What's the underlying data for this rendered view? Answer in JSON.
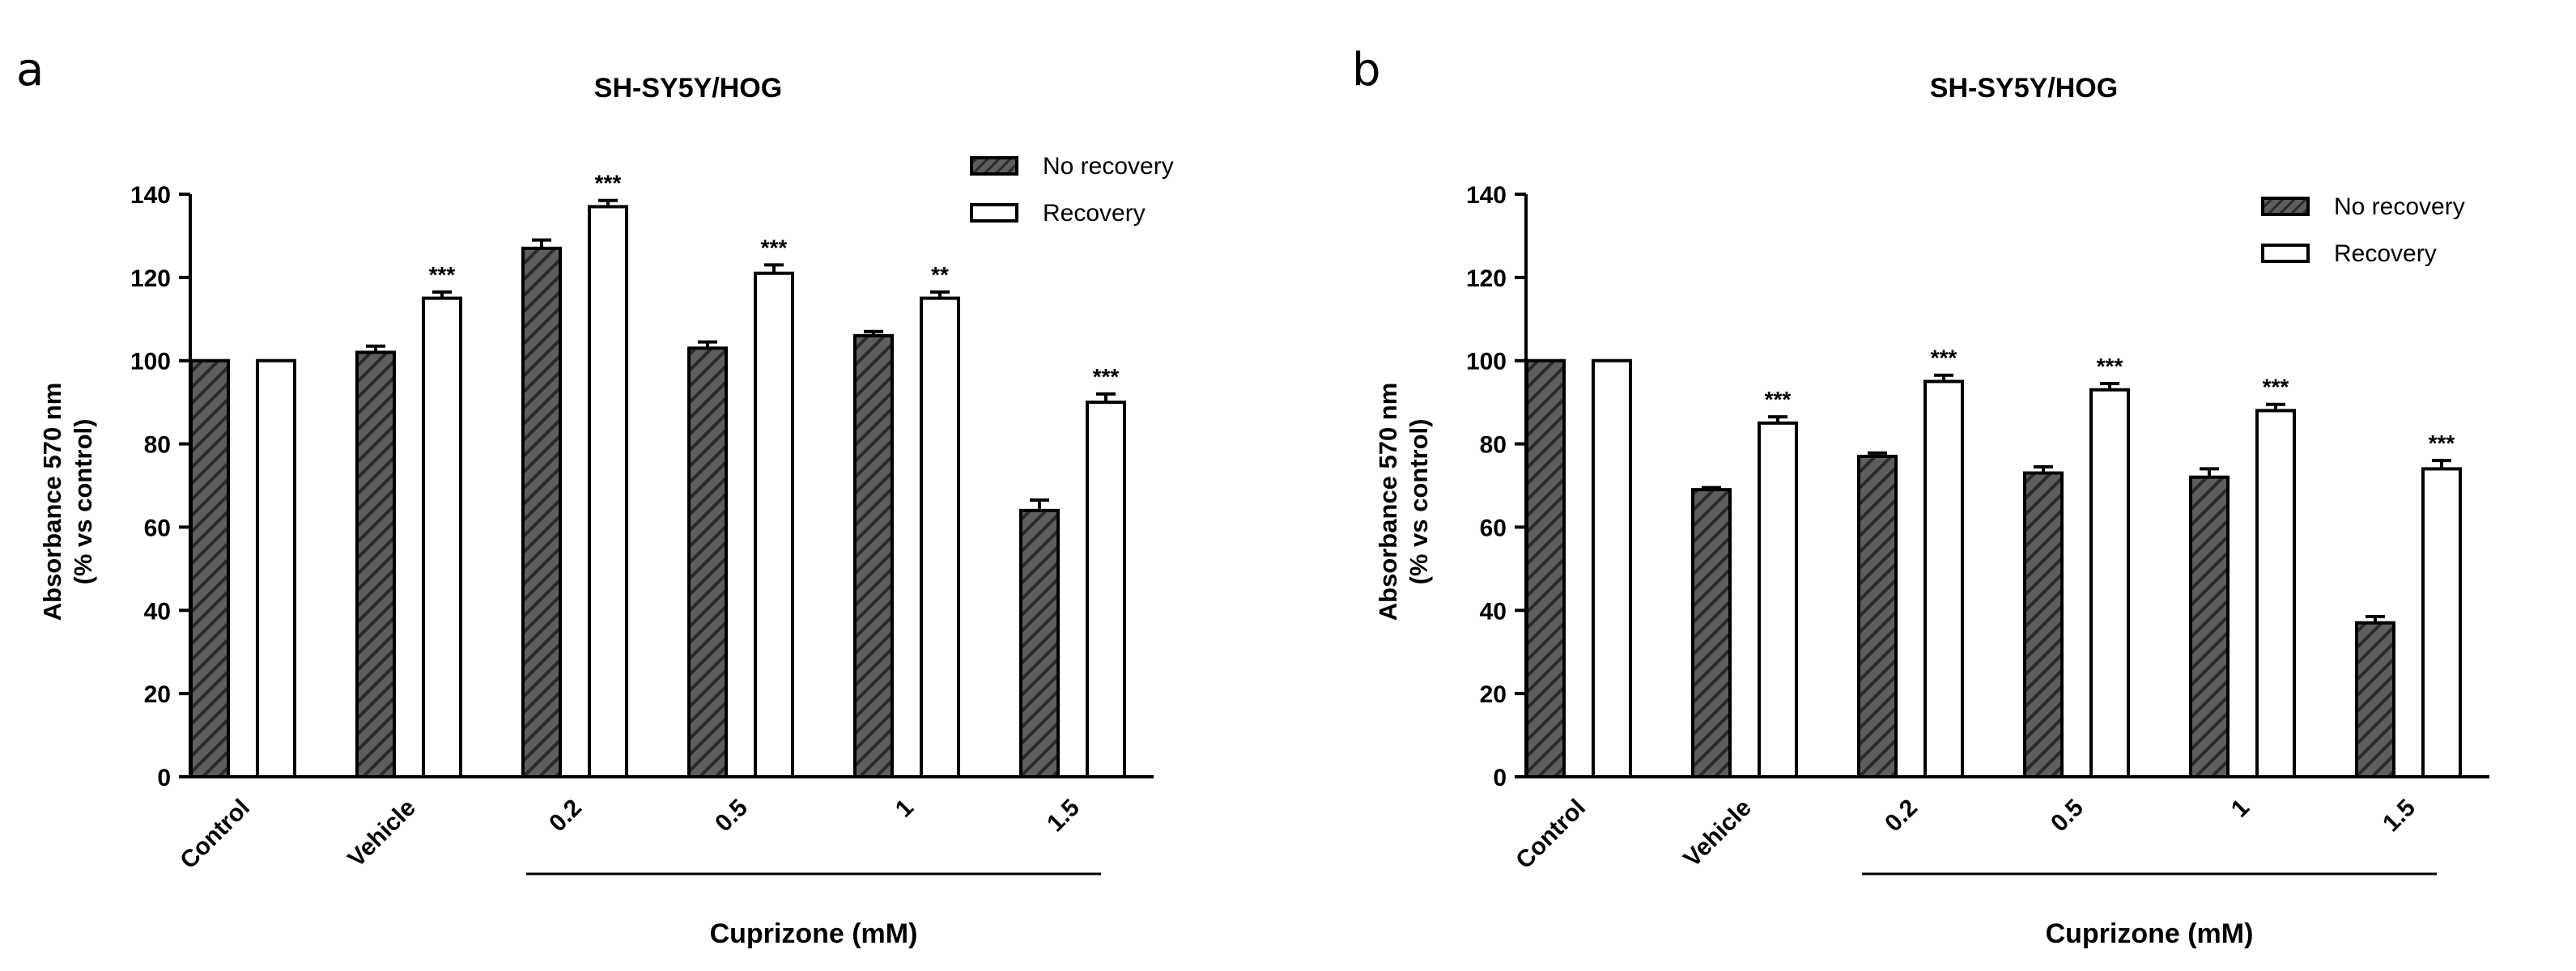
{
  "chart_data": [
    {
      "type": "bar",
      "panel": "a",
      "title": "SH-SY5Y/HOG",
      "ylabel_line1": "Absorbance 570 nm",
      "ylabel_line2": "(% vs control)",
      "xgroup_label": "Cuprizone (mM)",
      "ylim": [
        0,
        140
      ],
      "yticks": [
        0,
        20,
        40,
        60,
        80,
        100,
        120,
        140
      ],
      "categories": [
        "Control",
        "Vehicle",
        "0.2",
        "0.5",
        "1",
        "1.5"
      ],
      "series": [
        {
          "name": "No recovery",
          "pattern": "hatched",
          "values": [
            100,
            102,
            127,
            103,
            106,
            64
          ],
          "errors": [
            0,
            1.5,
            2,
            1.5,
            1,
            2.5
          ]
        },
        {
          "name": "Recovery",
          "pattern": "white",
          "values": [
            100,
            115,
            137,
            121,
            115,
            90
          ],
          "errors": [
            0,
            1.5,
            1.5,
            2,
            1.5,
            2
          ]
        }
      ],
      "significance": [
        "",
        "***",
        "***",
        "***",
        "**",
        "***"
      ]
    },
    {
      "type": "bar",
      "panel": "b",
      "title": "SH-SY5Y/HOG",
      "ylabel_line1": "Absorbance 570 nm",
      "ylabel_line2": "(% vs control)",
      "xgroup_label": "Cuprizone (mM)",
      "ylim": [
        0,
        140
      ],
      "yticks": [
        0,
        20,
        40,
        60,
        80,
        100,
        120,
        140
      ],
      "categories": [
        "Control",
        "Vehicle",
        "0.2",
        "0.5",
        "1",
        "1.5"
      ],
      "series": [
        {
          "name": "No recovery",
          "pattern": "hatched",
          "values": [
            100,
            69,
            77,
            73,
            72,
            37
          ],
          "errors": [
            0,
            0.5,
            0.8,
            1.5,
            2,
            1.5
          ]
        },
        {
          "name": "Recovery",
          "pattern": "white",
          "values": [
            100,
            85,
            95,
            93,
            88,
            74
          ],
          "errors": [
            0,
            1.5,
            1.5,
            1.5,
            1.5,
            2
          ]
        }
      ],
      "significance": [
        "",
        "***",
        "***",
        "***",
        "***",
        "***"
      ]
    }
  ]
}
